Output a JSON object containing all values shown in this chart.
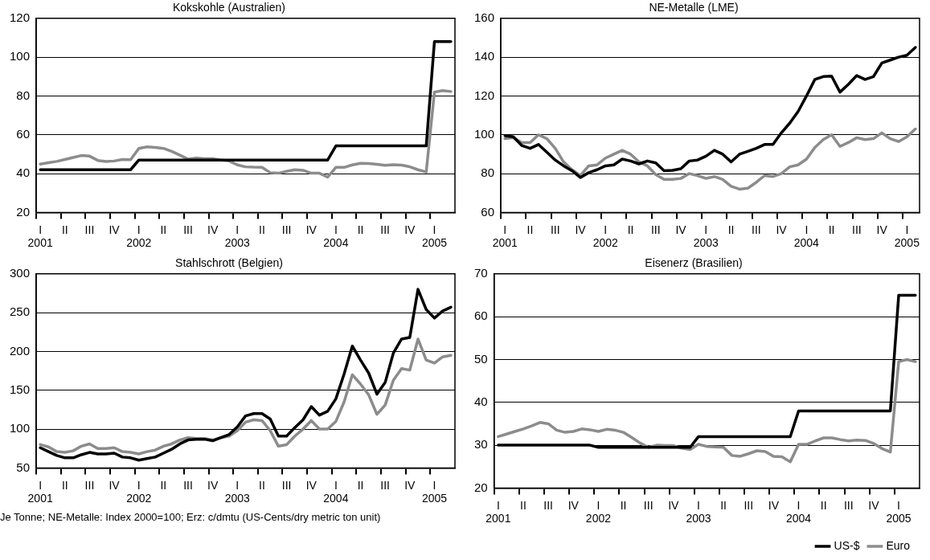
{
  "chart_data": [
    {
      "type": "line",
      "title": "Kokskohle (Australien)",
      "categories": [
        "I\n2001",
        null,
        null,
        "II",
        null,
        null,
        "III",
        null,
        null,
        "IV",
        null,
        null,
        "I\n2002",
        null,
        null,
        "II",
        null,
        null,
        "III",
        null,
        null,
        "IV",
        null,
        null,
        "I\n2003",
        null,
        null,
        "II",
        null,
        null,
        "III",
        null,
        null,
        "IV",
        null,
        null,
        "I\n2004",
        null,
        null,
        "II",
        null,
        null,
        "III",
        null,
        null,
        "IV",
        null,
        null,
        "I\n2005",
        null,
        null
      ],
      "ylim": [
        20,
        120
      ],
      "yticks": [
        20,
        40,
        60,
        80,
        100,
        120
      ],
      "grid": "y",
      "series": [
        {
          "color": "#000000",
          "values": [
            42,
            42,
            42,
            42,
            42,
            42,
            42,
            42,
            42,
            42,
            42,
            42,
            47,
            47,
            47,
            47,
            47,
            47,
            47,
            47,
            47,
            47,
            47,
            47,
            47,
            47,
            47,
            47,
            47,
            47,
            47,
            47,
            47,
            47,
            47,
            47,
            54.3,
            54.3,
            54.3,
            54.3,
            54.3,
            54.3,
            54.3,
            54.3,
            54.3,
            54.3,
            54.3,
            54.3,
            108,
            108,
            108
          ]
        },
        {
          "color": "#8c8c8c",
          "values": [
            44.9,
            45.6,
            46.3,
            47.3,
            48.3,
            49.3,
            49,
            46.8,
            46.2,
            46.5,
            47.3,
            47.2,
            53,
            53.8,
            53.5,
            53,
            51.5,
            49.5,
            47.5,
            48,
            47.7,
            47.7,
            47,
            46.5,
            44.5,
            43.5,
            43.3,
            43.2,
            40.5,
            40.2,
            41.2,
            42,
            41.7,
            40.2,
            40.2,
            38.2,
            43.2,
            43.2,
            44.5,
            45.3,
            45.2,
            44.8,
            44.3,
            44.6,
            44.4,
            43.5,
            42,
            40.8,
            82,
            82.8,
            82.3
          ]
        }
      ]
    },
    {
      "type": "line",
      "title": "NE-Metalle (LME)",
      "categories": [
        "I\n2001",
        null,
        null,
        "II",
        null,
        null,
        "III",
        null,
        null,
        "IV",
        null,
        null,
        "I\n2002",
        null,
        null,
        "II",
        null,
        null,
        "III",
        null,
        null,
        "IV",
        null,
        null,
        "I\n2003",
        null,
        null,
        "II",
        null,
        null,
        "III",
        null,
        null,
        "IV",
        null,
        null,
        "I\n2004",
        null,
        null,
        "II",
        null,
        null,
        "III",
        null,
        null,
        "IV",
        null,
        null,
        "I\n2005",
        null
      ],
      "ylim": [
        60,
        160
      ],
      "yticks": [
        60,
        80,
        100,
        120,
        140,
        160
      ],
      "grid": "y",
      "series": [
        {
          "color": "#000000",
          "values": [
            99.5,
            99,
            94.5,
            93,
            95,
            91,
            87,
            84,
            81.5,
            78,
            80.5,
            82,
            84,
            84.5,
            87.5,
            86.5,
            85,
            86.5,
            85.5,
            81.5,
            81.7,
            82.5,
            86.5,
            87,
            89,
            92,
            90,
            86,
            90,
            91.5,
            93,
            95,
            95,
            101,
            106,
            112,
            120,
            128.5,
            130,
            130.2,
            122,
            126,
            130.5,
            128.5,
            130,
            137,
            138.5,
            140,
            141,
            145
          ]
        },
        {
          "color": "#8c8c8c",
          "values": [
            98,
            98.5,
            96,
            96,
            100,
            98,
            93,
            86,
            82,
            79,
            84,
            84.5,
            88,
            90,
            92,
            90,
            86,
            84,
            79.5,
            77,
            77,
            77.5,
            80,
            79,
            77.5,
            78.5,
            77,
            73.5,
            72,
            72.5,
            75.5,
            79,
            78.5,
            80,
            83.5,
            84.5,
            87.5,
            93.5,
            97.5,
            100,
            94,
            96,
            98.5,
            97.5,
            98,
            101,
            98,
            96.5,
            99,
            103
          ]
        }
      ]
    },
    {
      "type": "line",
      "title": "Stahlschrott (Belgien)",
      "categories": [
        "I\n2001",
        null,
        null,
        "II",
        null,
        null,
        "III",
        null,
        null,
        "IV",
        null,
        null,
        "I\n2002",
        null,
        null,
        "II",
        null,
        null,
        "III",
        null,
        null,
        "IV",
        null,
        null,
        "I\n2003",
        null,
        null,
        "II",
        null,
        null,
        "III",
        null,
        null,
        "IV",
        null,
        null,
        "I\n2004",
        null,
        null,
        "II",
        null,
        null,
        "III",
        null,
        null,
        "IV",
        null,
        null,
        "I\n2005",
        null,
        null
      ],
      "ylim": [
        50,
        300
      ],
      "yticks": [
        50,
        100,
        150,
        200,
        250,
        300
      ],
      "grid": "y",
      "annotations": [
        "Je Tonne; NE-Metalle: Index 2000=100; Erz: c/dmtu (US-Cents/dry metric ton unit)"
      ],
      "series": [
        {
          "color": "#000000",
          "values": [
            76,
            71,
            66,
            63,
            63,
            67,
            70,
            68,
            68,
            69,
            64,
            63,
            60,
            62,
            64,
            69,
            74,
            81,
            86,
            87,
            87,
            85,
            89,
            93,
            103,
            117,
            120,
            120,
            113,
            91,
            91,
            102,
            112,
            129,
            118,
            123,
            139,
            171,
            207,
            189,
            172,
            145,
            160,
            198,
            216,
            218,
            280,
            254,
            243,
            252,
            257
          ]
        },
        {
          "color": "#8c8c8c",
          "values": [
            80,
            77,
            71,
            70,
            72,
            78,
            81,
            75,
            75,
            76,
            71,
            70,
            68,
            71,
            73,
            78,
            81,
            86,
            89,
            88,
            88,
            86,
            89,
            91,
            98,
            109,
            112,
            111,
            98,
            78,
            80,
            91,
            100,
            111,
            100,
            100,
            110,
            135,
            170,
            158,
            144,
            119,
            131,
            163,
            178,
            176,
            216,
            189,
            185,
            193,
            195
          ]
        }
      ]
    },
    {
      "type": "line",
      "title": "Eisenerz (Brasilien)",
      "categories": [
        "I\n2001",
        null,
        null,
        "II",
        null,
        null,
        "III",
        null,
        null,
        "IV",
        null,
        null,
        "I\n2002",
        null,
        null,
        "II",
        null,
        null,
        "III",
        null,
        null,
        "IV",
        null,
        null,
        "I\n2003",
        null,
        null,
        "II",
        null,
        null,
        "III",
        null,
        null,
        "IV",
        null,
        null,
        "I\n2004",
        null,
        null,
        "II",
        null,
        null,
        "III",
        null,
        null,
        "IV",
        null,
        null,
        "I\n2005",
        null,
        null
      ],
      "ylim": [
        20,
        70
      ],
      "yticks": [
        20,
        30,
        40,
        50,
        60,
        70
      ],
      "grid": "y",
      "legend": "bottom",
      "series": [
        {
          "name": "US-$",
          "color": "#000000",
          "values": [
            30,
            30,
            30,
            30,
            30,
            30,
            30,
            30,
            30,
            30,
            30,
            30,
            29.5,
            29.5,
            29.5,
            29.5,
            29.5,
            29.5,
            29.5,
            29.5,
            29.5,
            29.5,
            29.5,
            29.5,
            32,
            32,
            32,
            32,
            32,
            32,
            32,
            32,
            32,
            32,
            32,
            32,
            38,
            38,
            38,
            38,
            38,
            38,
            38,
            38,
            38,
            38,
            38,
            38,
            65,
            65,
            65
          ]
        },
        {
          "name": "Euro",
          "color": "#8c8c8c",
          "values": [
            32,
            32.6,
            33.2,
            33.8,
            34.5,
            35.3,
            35,
            33.5,
            33,
            33.2,
            33.8,
            33.6,
            33.2,
            33.7,
            33.5,
            33,
            31.8,
            30.5,
            29.5,
            30,
            29.9,
            29.9,
            29.3,
            29,
            30.2,
            29.7,
            29.6,
            29.5,
            27.6,
            27.4,
            28,
            28.7,
            28.5,
            27.4,
            27.3,
            26.1,
            30.2,
            30.2,
            31,
            31.7,
            31.7,
            31.3,
            31,
            31.2,
            31.1,
            30.4,
            29.2,
            28.4,
            49.5,
            50,
            49.5
          ]
        }
      ]
    }
  ]
}
